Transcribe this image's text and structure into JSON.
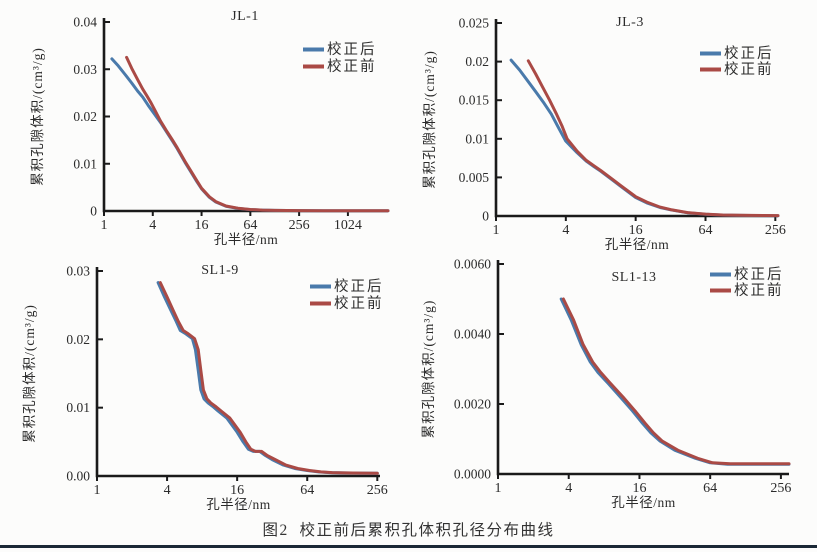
{
  "figure_caption": "图2  校正前后累积孔体积孔径分布曲线",
  "legend": {
    "after": "校正后",
    "before": "校正前"
  },
  "colors": {
    "after_line": "#4a7aab",
    "before_line": "#aa4a45",
    "axis": "#1a1a1a",
    "text": "#2b2b2b",
    "bottom_rule": "#1b2836"
  },
  "chart_data": [
    {
      "type": "line",
      "title": "JL-1",
      "xlabel": "孔半径/nm",
      "ylabel": "累积孔隙体积/(cm³/g)",
      "xscale": "log",
      "xlim": [
        1,
        3200
      ],
      "xticks": [
        "1",
        "4",
        "16",
        "64",
        "256",
        "1024"
      ],
      "ylim": [
        0,
        0.04
      ],
      "yticks": [
        "0",
        "0.01",
        "0.02",
        "0.03",
        "0.04"
      ],
      "legend_position": "upper-right",
      "grid": false,
      "series": [
        {
          "name": "校正后",
          "color": "#4a7aab",
          "x": [
            1.25,
            1.5,
            1.8,
            2.2,
            2.6,
            3,
            3.5,
            4,
            5,
            6,
            7,
            8,
            10,
            12,
            14,
            16,
            20,
            24,
            32,
            45,
            64,
            90,
            128,
            256,
            512,
            1024,
            2000,
            3200
          ],
          "y": [
            0.0322,
            0.0307,
            0.029,
            0.0271,
            0.0254,
            0.0241,
            0.0224,
            0.021,
            0.0187,
            0.0166,
            0.0148,
            0.0132,
            0.0103,
            0.0081,
            0.0062,
            0.0047,
            0.0029,
            0.0019,
            0.001,
            0.00055,
            0.0003,
            0.00018,
            0.00012,
            8e-05,
            6e-05,
            5e-05,
            4e-05,
            4e-05
          ]
        },
        {
          "name": "校正前",
          "color": "#aa4a45",
          "x": [
            1.9,
            2.2,
            2.6,
            3,
            3.4,
            3.8,
            4.2,
            5,
            6,
            7,
            8,
            10,
            12,
            14,
            16,
            20,
            24,
            32,
            45,
            64,
            90,
            128,
            256,
            512,
            1024,
            2000,
            3200
          ],
          "y": [
            0.0325,
            0.0302,
            0.0278,
            0.0258,
            0.0243,
            0.0229,
            0.0215,
            0.019,
            0.0168,
            0.015,
            0.0134,
            0.0105,
            0.0083,
            0.0064,
            0.0048,
            0.003,
            0.002,
            0.00105,
            0.0006,
            0.00032,
            0.0002,
            0.00013,
            9e-05,
            7e-05,
            6e-05,
            5e-05,
            5e-05
          ]
        }
      ]
    },
    {
      "type": "line",
      "title": "JL-3",
      "xlabel": "孔半径/nm",
      "ylabel": "累积孔隙体积/(cm³/g)",
      "xscale": "log",
      "xlim": [
        1,
        270
      ],
      "xticks": [
        "1",
        "4",
        "16",
        "64",
        "256"
      ],
      "ylim": [
        0,
        0.025
      ],
      "yticks": [
        "0",
        "0.005",
        "0.01",
        "0.015",
        "0.02",
        "0.025"
      ],
      "legend_position": "upper-right",
      "grid": false,
      "series": [
        {
          "name": "校正后",
          "color": "#4a7aab",
          "x": [
            1.35,
            1.6,
            1.9,
            2.2,
            2.6,
            3,
            3.5,
            4,
            5,
            6,
            7,
            8,
            10,
            12,
            16,
            20,
            26,
            32,
            45,
            64,
            90,
            128,
            200,
            270
          ],
          "y": [
            0.0202,
            0.0189,
            0.0174,
            0.0161,
            0.0146,
            0.0132,
            0.0113,
            0.0097,
            0.0082,
            0.0071,
            0.0064,
            0.0058,
            0.0047,
            0.0038,
            0.0024,
            0.0017,
            0.0011,
            0.0008,
            0.00042,
            0.00022,
            0.00012,
            8e-05,
            5e-05,
            4e-05
          ]
        },
        {
          "name": "校正前",
          "color": "#aa4a45",
          "x": [
            1.9,
            2.2,
            2.5,
            2.9,
            3.3,
            3.7,
            4.1,
            5,
            6,
            7,
            8,
            10,
            12,
            16,
            20,
            26,
            32,
            45,
            64,
            90,
            128,
            200,
            270
          ],
          "y": [
            0.0201,
            0.0184,
            0.0168,
            0.015,
            0.0133,
            0.0117,
            0.01,
            0.0084,
            0.0072,
            0.0065,
            0.0059,
            0.0048,
            0.0039,
            0.0025,
            0.0018,
            0.00115,
            0.00083,
            0.00044,
            0.00024,
            0.00013,
            9e-05,
            6e-05,
            5e-05
          ]
        }
      ]
    },
    {
      "type": "line",
      "title": "SL1-9",
      "xlabel": "孔半径/nm",
      "ylabel": "累积孔隙体积/(cm³/g)",
      "xscale": "log",
      "xlim": [
        1,
        270
      ],
      "xticks": [
        "1",
        "4",
        "16",
        "64",
        "256"
      ],
      "ylim": [
        0,
        0.03
      ],
      "yticks": [
        "0.00",
        "0.01",
        "0.02",
        "0.03"
      ],
      "legend_position": "upper-right",
      "grid": false,
      "series": [
        {
          "name": "校正后",
          "color": "#4a7aab",
          "x": [
            3.35,
            3.8,
            4.3,
            4.8,
            5.2,
            5.8,
            6.6,
            7.0,
            7.4,
            7.8,
            8.3,
            9,
            10,
            11,
            13,
            16,
            18,
            20,
            22,
            25,
            28,
            32,
            40,
            50,
            64,
            80,
            100,
            128,
            180,
            256
          ],
          "y": [
            0.0283,
            0.0262,
            0.0243,
            0.0226,
            0.0213,
            0.0208,
            0.0201,
            0.0185,
            0.0155,
            0.0126,
            0.0113,
            0.0107,
            0.0101,
            0.0095,
            0.0085,
            0.0064,
            0.005,
            0.0039,
            0.0036,
            0.0036,
            0.003,
            0.0024,
            0.0016,
            0.0011,
            0.0008,
            0.0006,
            0.0005,
            0.00046,
            0.00042,
            0.0004
          ]
        },
        {
          "name": "校正前",
          "color": "#aa4a45",
          "x": [
            3.5,
            4.0,
            4.5,
            5.0,
            5.5,
            6.1,
            6.9,
            7.4,
            7.8,
            8.2,
            8.8,
            9.5,
            10.6,
            11.7,
            13.8,
            17,
            19,
            21,
            23,
            26,
            29,
            34,
            42,
            53,
            67,
            84,
            105,
            135,
            190,
            256
          ],
          "y": [
            0.0283,
            0.0262,
            0.0243,
            0.0226,
            0.0213,
            0.0208,
            0.0201,
            0.0185,
            0.0155,
            0.0126,
            0.0113,
            0.0107,
            0.0101,
            0.0095,
            0.0085,
            0.0064,
            0.005,
            0.0039,
            0.0036,
            0.0036,
            0.003,
            0.0024,
            0.0016,
            0.0011,
            0.0008,
            0.0006,
            0.0005,
            0.00046,
            0.00042,
            0.0004
          ]
        }
      ]
    },
    {
      "type": "line",
      "title": "SL1-13",
      "xlabel": "孔半径/nm",
      "ylabel": "累积孔隙体积/(cm³/g)",
      "xscale": "log",
      "xlim": [
        1,
        300
      ],
      "xticks": [
        "1",
        "4",
        "16",
        "64",
        "256"
      ],
      "ylim": [
        0,
        0.006
      ],
      "yticks": [
        "0.0000",
        "0.0020",
        "0.0040",
        "0.0060"
      ],
      "legend_position": "upper-right",
      "grid": false,
      "series": [
        {
          "name": "校正后",
          "color": "#4a7aab",
          "x": [
            3.45,
            4.2,
            5.1,
            6.1,
            7.1,
            8.6,
            11,
            14,
            17,
            20,
            24,
            32,
            48,
            64,
            90,
            128,
            200,
            300
          ],
          "y": [
            0.005,
            0.0044,
            0.0037,
            0.0032,
            0.0029,
            0.0026,
            0.0022,
            0.0018,
            0.00145,
            0.00118,
            0.00094,
            0.00068,
            0.00045,
            0.00032,
            0.00028,
            0.00028,
            0.00028,
            0.00028
          ]
        },
        {
          "name": "校正前",
          "color": "#aa4a45",
          "x": [
            3.6,
            4.4,
            5.3,
            6.4,
            7.5,
            9.0,
            11.6,
            14.7,
            17.9,
            21,
            25,
            34,
            50,
            67,
            95,
            135,
            210,
            300
          ],
          "y": [
            0.005,
            0.0044,
            0.0037,
            0.0032,
            0.0029,
            0.0026,
            0.0022,
            0.0018,
            0.00145,
            0.00118,
            0.00094,
            0.00068,
            0.00045,
            0.00032,
            0.00029,
            0.00029,
            0.00029,
            0.00029
          ]
        }
      ]
    }
  ]
}
